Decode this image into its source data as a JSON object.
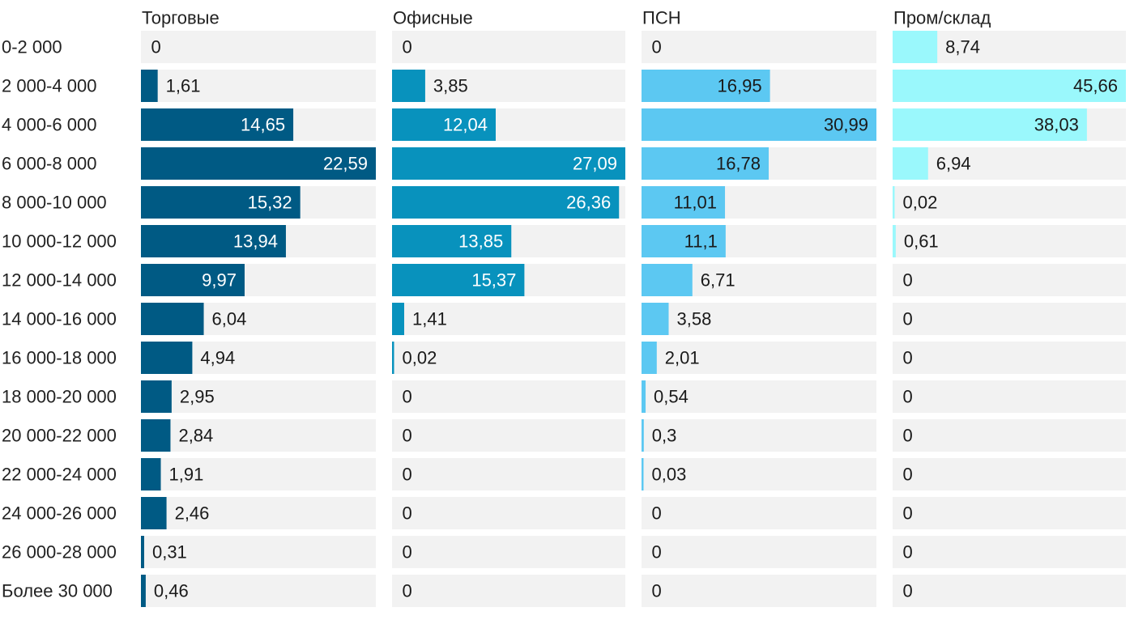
{
  "chart_data": {
    "type": "bar",
    "orientation": "horizontal",
    "layout": "small-multiples",
    "categories": [
      "0-2 000",
      "2 000-4 000",
      "4 000-6 000",
      "6 000-8 000",
      "8 000-10 000",
      "10 000-12 000",
      "12 000-14 000",
      "14 000-16 000",
      "16 000-18 000",
      "18 000-20 000",
      "20 000-22 000",
      "22 000-24 000",
      "24 000-26 000",
      "26 000-28 000",
      "Более 30 000"
    ],
    "series": [
      {
        "name": "Торговые",
        "color": "#005A84",
        "values": [
          0,
          1.61,
          14.65,
          22.59,
          15.32,
          13.94,
          9.97,
          6.04,
          4.94,
          2.95,
          2.84,
          1.91,
          2.46,
          0.31,
          0.46
        ],
        "labels": [
          "0",
          "1,61",
          "14,65",
          "22,59",
          "15,32",
          "13,94",
          "9,97",
          "6,04",
          "4,94",
          "2,95",
          "2,84",
          "1,91",
          "2,46",
          "0,31",
          "0,46"
        ]
      },
      {
        "name": "Офисные",
        "color": "#0892BD",
        "values": [
          0,
          3.85,
          12.04,
          27.09,
          26.36,
          13.85,
          15.37,
          1.41,
          0.02,
          0,
          0,
          0,
          0,
          0,
          0
        ],
        "labels": [
          "0",
          "3,85",
          "12,04",
          "27,09",
          "26,36",
          "13,85",
          "15,37",
          "1,41",
          "0,02",
          "0",
          "0",
          "0",
          "0",
          "0",
          "0"
        ]
      },
      {
        "name": "ПСН",
        "color": "#5CC8F2",
        "values": [
          0,
          16.95,
          30.99,
          16.78,
          11.01,
          11.1,
          6.71,
          3.58,
          2.01,
          0.54,
          0.3,
          0.03,
          0,
          0,
          0
        ],
        "labels": [
          "0",
          "16,95",
          "30,99",
          "16,78",
          "11,01",
          "11,1",
          "6,71",
          "3,58",
          "2,01",
          "0,54",
          "0,3",
          "0,03",
          "0",
          "0",
          "0"
        ]
      },
      {
        "name": "Пром/склад",
        "color": "#9AF8FC",
        "values": [
          8.74,
          45.66,
          38.03,
          6.94,
          0.02,
          0.61,
          0,
          0,
          0,
          0,
          0,
          0,
          0,
          0,
          0
        ],
        "labels": [
          "8,74",
          "45,66",
          "38,03",
          "6,94",
          "0,02",
          "0,61",
          "0",
          "0",
          "0",
          "0",
          "0",
          "0",
          "0",
          "0",
          "0"
        ]
      }
    ],
    "track_color": "#F2F2F2",
    "grid": false,
    "legend": "none"
  }
}
